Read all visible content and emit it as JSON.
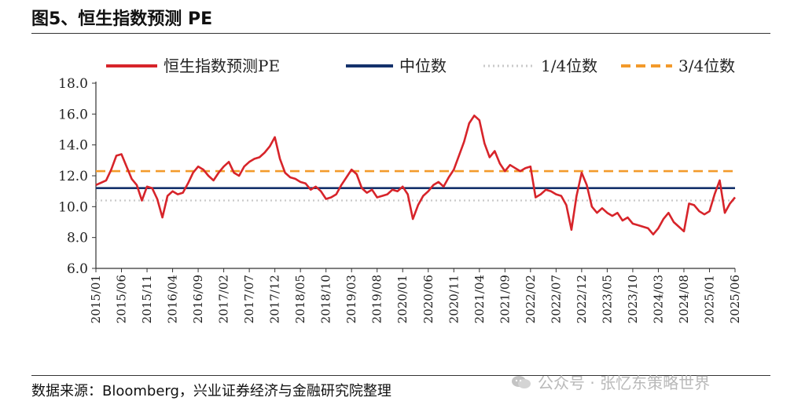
{
  "header": {
    "title": "图5、恒生指数预测 PE"
  },
  "footer": {
    "source": "数据来源：Bloomberg，兴业证券经济与金融研究院整理",
    "watermark": "公众号 · 张忆东策略世界"
  },
  "colors": {
    "series": "#d7242a",
    "median": "#14316b",
    "q1": "#c9c9c9",
    "q3": "#f39a2b"
  },
  "chart_data": {
    "type": "line",
    "title": "",
    "xlabel": "",
    "ylabel": "",
    "ylim": [
      6.0,
      18.0
    ],
    "yticks": [
      "6.0",
      "8.0",
      "10.0",
      "12.0",
      "14.0",
      "16.0",
      "18.0"
    ],
    "xticks": [
      "2015/01",
      "2015/06",
      "2015/11",
      "2016/04",
      "2016/09",
      "2017/02",
      "2017/07",
      "2017/12",
      "2018/05",
      "2018/10",
      "2019/03",
      "2019/08",
      "2020/01",
      "2020/06",
      "2020/11",
      "2021/04",
      "2021/09",
      "2022/02",
      "2022/07",
      "2022/12",
      "2023/05",
      "2023/10",
      "2024/03",
      "2024/08",
      "2025/01",
      "2025/06"
    ],
    "legend_position": "top",
    "reference_lines": [
      {
        "name": "中位数",
        "value": 11.2,
        "style": "solid"
      },
      {
        "name": "1/4位数",
        "value": 10.4,
        "style": "dotted"
      },
      {
        "name": "3/4位数",
        "value": 12.3,
        "style": "dashed"
      }
    ],
    "series": [
      {
        "name": "恒生指数预测PE",
        "x": [
          "2015/01",
          "2015/03",
          "2015/04",
          "2015/05",
          "2015/06",
          "2015/07",
          "2015/08",
          "2015/09",
          "2015/10",
          "2015/11",
          "2015/12",
          "2016/01",
          "2016/02",
          "2016/03",
          "2016/04",
          "2016/05",
          "2016/06",
          "2016/07",
          "2016/08",
          "2016/09",
          "2016/10",
          "2016/11",
          "2016/12",
          "2017/01",
          "2017/02",
          "2017/03",
          "2017/04",
          "2017/05",
          "2017/06",
          "2017/07",
          "2017/08",
          "2017/09",
          "2017/10",
          "2017/11",
          "2017/12",
          "2018/01",
          "2018/02",
          "2018/03",
          "2018/04",
          "2018/05",
          "2018/06",
          "2018/07",
          "2018/08",
          "2018/09",
          "2018/10",
          "2018/11",
          "2018/12",
          "2019/01",
          "2019/02",
          "2019/03",
          "2019/04",
          "2019/05",
          "2019/06",
          "2019/07",
          "2019/08",
          "2019/09",
          "2019/10",
          "2019/11",
          "2019/12",
          "2020/01",
          "2020/02",
          "2020/03",
          "2020/04",
          "2020/05",
          "2020/06",
          "2020/07",
          "2020/08",
          "2020/09",
          "2020/10",
          "2020/11",
          "2020/12",
          "2021/01",
          "2021/02",
          "2021/03",
          "2021/04",
          "2021/05",
          "2021/06",
          "2021/07",
          "2021/08",
          "2021/09",
          "2021/10",
          "2021/11",
          "2021/12",
          "2022/01",
          "2022/02",
          "2022/03",
          "2022/04",
          "2022/05",
          "2022/06",
          "2022/07",
          "2022/08",
          "2022/09",
          "2022/10",
          "2022/11",
          "2022/12",
          "2023/01",
          "2023/02",
          "2023/03",
          "2023/04",
          "2023/05",
          "2023/06",
          "2023/07",
          "2023/08",
          "2023/09",
          "2023/10",
          "2023/11",
          "2023/12",
          "2024/01",
          "2024/02",
          "2024/03",
          "2024/04",
          "2024/05",
          "2024/06",
          "2024/07",
          "2024/08",
          "2024/09",
          "2024/10",
          "2024/11",
          "2024/12",
          "2025/01",
          "2025/02",
          "2025/03",
          "2025/04",
          "2025/05",
          "2025/06"
        ],
        "values": [
          11.4,
          11.7,
          12.4,
          13.3,
          13.4,
          12.6,
          11.8,
          11.4,
          10.4,
          11.3,
          11.2,
          10.5,
          9.3,
          10.7,
          11.0,
          10.8,
          10.9,
          11.5,
          12.2,
          12.6,
          12.4,
          12.0,
          11.7,
          12.2,
          12.6,
          12.9,
          12.2,
          12.0,
          12.6,
          12.9,
          13.1,
          13.2,
          13.5,
          13.9,
          14.5,
          13.1,
          12.2,
          11.9,
          11.8,
          11.6,
          11.5,
          11.1,
          11.3,
          11.0,
          10.5,
          10.6,
          10.8,
          11.4,
          11.9,
          12.4,
          12.1,
          11.2,
          10.9,
          11.1,
          10.6,
          10.7,
          10.8,
          11.1,
          11.0,
          11.3,
          10.8,
          9.2,
          10.1,
          10.7,
          11.0,
          11.4,
          11.6,
          11.3,
          11.9,
          12.4,
          13.3,
          14.2,
          15.4,
          15.9,
          15.6,
          14.1,
          13.2,
          13.6,
          12.8,
          12.3,
          12.7,
          12.5,
          12.3,
          12.5,
          12.6,
          10.6,
          10.8,
          11.1,
          11.0,
          10.8,
          10.7,
          10.1,
          8.5,
          10.7,
          12.2,
          11.4,
          10.0,
          9.6,
          9.9,
          9.6,
          9.4,
          9.6,
          9.1,
          9.3,
          8.9,
          8.8,
          8.7,
          8.6,
          8.2,
          8.6,
          9.2,
          9.6,
          9.0,
          8.7,
          8.4,
          10.2,
          10.1,
          9.7,
          9.5,
          9.7,
          10.8,
          11.7,
          9.6,
          10.2,
          10.6
        ]
      }
    ]
  }
}
